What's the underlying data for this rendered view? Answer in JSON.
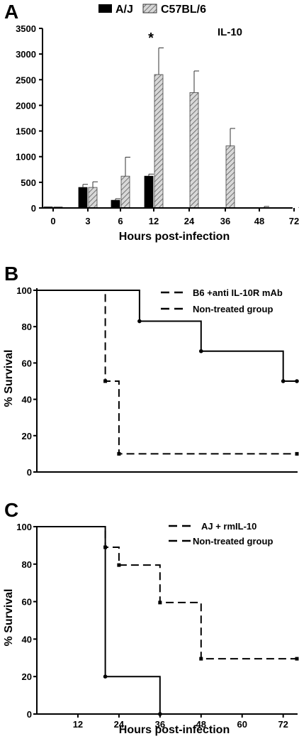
{
  "figure": {
    "panels": [
      {
        "letter": "A",
        "annotation": "IL-10",
        "legend": [
          "A/J",
          "C57BL/6"
        ],
        "star": "*",
        "xlabel": "Hours post-infection"
      },
      {
        "letter": "B",
        "ylabel": "% Survival",
        "legend": [
          "B6 +anti IL-10R mAb",
          "Non-treated group"
        ]
      },
      {
        "letter": "C",
        "ylabel": "% Survival",
        "legend": [
          "AJ + rmIL-10",
          "Non-treated group"
        ],
        "xlabel": "Hours post-infection"
      }
    ]
  },
  "chart_data": [
    {
      "type": "bar",
      "categories": [
        "0",
        "3",
        "6",
        "12",
        "24",
        "36",
        "48",
        "72"
      ],
      "ylim": [
        0,
        3500
      ],
      "yticks": [
        0,
        500,
        1000,
        1500,
        2000,
        2500,
        3000,
        3500
      ],
      "series": [
        {
          "name": "A/J",
          "color": "#000000",
          "values": [
            20,
            400,
            150,
            620,
            0,
            0,
            0,
            0
          ],
          "errors": [
            0,
            60,
            30,
            40,
            0,
            0,
            0,
            0
          ]
        },
        {
          "name": "C57BL/6",
          "color": "#c8c8c8",
          "pattern": "hatched",
          "values": [
            20,
            400,
            620,
            2600,
            2250,
            1210,
            0,
            0
          ],
          "errors": [
            0,
            110,
            370,
            520,
            420,
            340,
            30,
            15
          ]
        }
      ],
      "annotations": [
        {
          "text": "*",
          "category": "12"
        }
      ]
    },
    {
      "type": "line",
      "step": true,
      "ylim": [
        0,
        100
      ],
      "yticks": [
        0,
        20,
        40,
        60,
        80,
        100
      ],
      "xlim": [
        0,
        76
      ],
      "series": [
        {
          "name": "B6 +anti IL-10R mAb",
          "style": "dashed",
          "points": [
            [
              0,
              100
            ],
            [
              20,
              100
            ],
            [
              20,
              50
            ],
            [
              24,
              50
            ],
            [
              24,
              10
            ],
            [
              76,
              10
            ]
          ]
        },
        {
          "name": "Non-treated group",
          "style": "solid",
          "points": [
            [
              0,
              100
            ],
            [
              30,
              100
            ],
            [
              30,
              83
            ],
            [
              48,
              83
            ],
            [
              48,
              66.5
            ],
            [
              72,
              66.5
            ],
            [
              72,
              50
            ],
            [
              76,
              50
            ]
          ]
        }
      ]
    },
    {
      "type": "line",
      "step": true,
      "ylim": [
        0,
        100
      ],
      "yticks": [
        0,
        20,
        40,
        60,
        80,
        100
      ],
      "xlim": [
        0,
        76
      ],
      "xticks": [
        12,
        24,
        36,
        48,
        60,
        72
      ],
      "series": [
        {
          "name": "AJ + rmIL-10",
          "style": "dashed",
          "points": [
            [
              0,
              100
            ],
            [
              20,
              100
            ],
            [
              20,
              89
            ],
            [
              24,
              89
            ],
            [
              24,
              79.5
            ],
            [
              36,
              79.5
            ],
            [
              36,
              59.5
            ],
            [
              48,
              59.5
            ],
            [
              48,
              29.5
            ],
            [
              76,
              29.5
            ]
          ]
        },
        {
          "name": "Non-treated group",
          "style": "solid",
          "points": [
            [
              0,
              100
            ],
            [
              20,
              100
            ],
            [
              20,
              20
            ],
            [
              36,
              20
            ],
            [
              36,
              0
            ]
          ]
        }
      ]
    }
  ]
}
